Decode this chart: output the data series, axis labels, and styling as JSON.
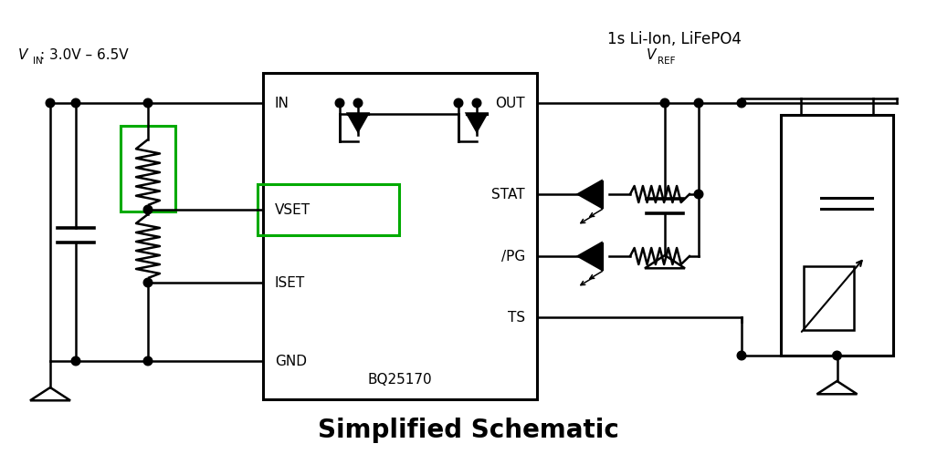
{
  "title": "Simplified Schematic",
  "title_fontsize": 20,
  "title_fontweight": "bold",
  "vin_range": "3.0V – 6.5V",
  "battery_label": "1s Li-Ion, LiFePO4",
  "ic_label": "BQ25170",
  "pin_IN": "IN",
  "pin_OUT": "OUT",
  "pin_VSET": "VSET",
  "pin_ISET": "ISET",
  "pin_GND": "GND",
  "pin_STAT": "STAT",
  "pin_PG": "/PG",
  "pin_TS": "TS",
  "green_color": "#00aa00",
  "black_color": "#000000",
  "bg_color": "#ffffff",
  "lw": 1.8,
  "lw_thick": 2.2
}
